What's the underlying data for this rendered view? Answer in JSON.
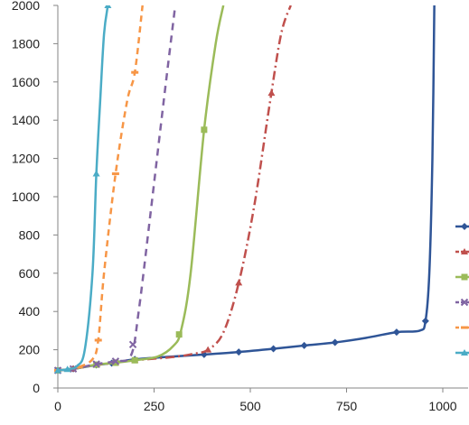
{
  "chart_data": {
    "type": "line",
    "title": "",
    "xlabel": "",
    "ylabel": "",
    "xlim": [
      0,
      1000
    ],
    "ylim": [
      0,
      2000
    ],
    "x_ticks": [
      0,
      250,
      500,
      750,
      1000
    ],
    "y_ticks": [
      0,
      200,
      400,
      600,
      800,
      1000,
      1200,
      1400,
      1600,
      1800,
      2000
    ],
    "grid": false,
    "legend": "right",
    "series": [
      {
        "color": "#2f5597",
        "dash": "",
        "marker": "diamond",
        "points": [
          [
            0,
            92
          ],
          [
            40,
            100
          ],
          [
            100,
            120
          ],
          [
            140,
            130
          ],
          [
            200,
            150
          ],
          [
            280,
            162
          ],
          [
            380,
            175
          ],
          [
            470,
            188
          ],
          [
            560,
            205
          ],
          [
            640,
            222
          ],
          [
            720,
            238
          ],
          [
            800,
            262
          ],
          [
            880,
            292
          ],
          [
            940,
            300
          ],
          [
            955,
            350
          ],
          [
            965,
            600
          ],
          [
            973,
            1200
          ],
          [
            978,
            2000
          ]
        ],
        "markers_at": [
          0,
          40,
          100,
          140,
          200,
          380,
          470,
          560,
          640,
          720,
          880,
          955
        ]
      },
      {
        "color": "#c0504d",
        "dash": "10 4 2 4",
        "marker": "triangle",
        "points": [
          [
            0,
            92
          ],
          [
            40,
            100
          ],
          [
            100,
            120
          ],
          [
            150,
            132
          ],
          [
            200,
            145
          ],
          [
            300,
            162
          ],
          [
            350,
            178
          ],
          [
            390,
            200
          ],
          [
            430,
            290
          ],
          [
            470,
            550
          ],
          [
            510,
            950
          ],
          [
            550,
            1480
          ],
          [
            580,
            1850
          ],
          [
            605,
            2000
          ]
        ],
        "markers_at": [
          0,
          40,
          100,
          150,
          200,
          390,
          470,
          555
        ]
      },
      {
        "color": "#9bbb59",
        "dash": "",
        "marker": "square",
        "points": [
          [
            0,
            92
          ],
          [
            40,
            100
          ],
          [
            100,
            122
          ],
          [
            150,
            132
          ],
          [
            200,
            145
          ],
          [
            260,
            165
          ],
          [
            300,
            220
          ],
          [
            320,
            300
          ],
          [
            345,
            600
          ],
          [
            380,
            1350
          ],
          [
            410,
            1800
          ],
          [
            430,
            2000
          ]
        ],
        "markers_at": [
          0,
          100,
          150,
          200,
          315,
          380
        ]
      },
      {
        "color": "#8064a2",
        "dash": "8 6",
        "marker": "x",
        "points": [
          [
            0,
            92
          ],
          [
            40,
            100
          ],
          [
            100,
            125
          ],
          [
            150,
            140
          ],
          [
            190,
            170
          ],
          [
            210,
            400
          ],
          [
            240,
            900
          ],
          [
            275,
            1500
          ],
          [
            305,
            2000
          ]
        ],
        "markers_at": [
          0,
          40,
          100,
          150,
          195
        ]
      },
      {
        "color": "#f79646",
        "dash": "7 5",
        "marker": "dash",
        "points": [
          [
            0,
            92
          ],
          [
            30,
            100
          ],
          [
            55,
            110
          ],
          [
            90,
            150
          ],
          [
            105,
            250
          ],
          [
            120,
            600
          ],
          [
            150,
            1120
          ],
          [
            180,
            1500
          ],
          [
            200,
            1650
          ],
          [
            220,
            2000
          ]
        ],
        "markers_at": [
          0,
          55,
          105,
          150,
          200
        ]
      },
      {
        "color": "#4bacc6",
        "dash": "",
        "marker": "triangle",
        "points": [
          [
            0,
            92
          ],
          [
            25,
            98
          ],
          [
            50,
            115
          ],
          [
            70,
            200
          ],
          [
            90,
            600
          ],
          [
            100,
            1120
          ],
          [
            110,
            1500
          ],
          [
            120,
            1850
          ],
          [
            130,
            2000
          ]
        ],
        "markers_at": [
          0,
          25,
          100,
          130
        ]
      }
    ]
  }
}
